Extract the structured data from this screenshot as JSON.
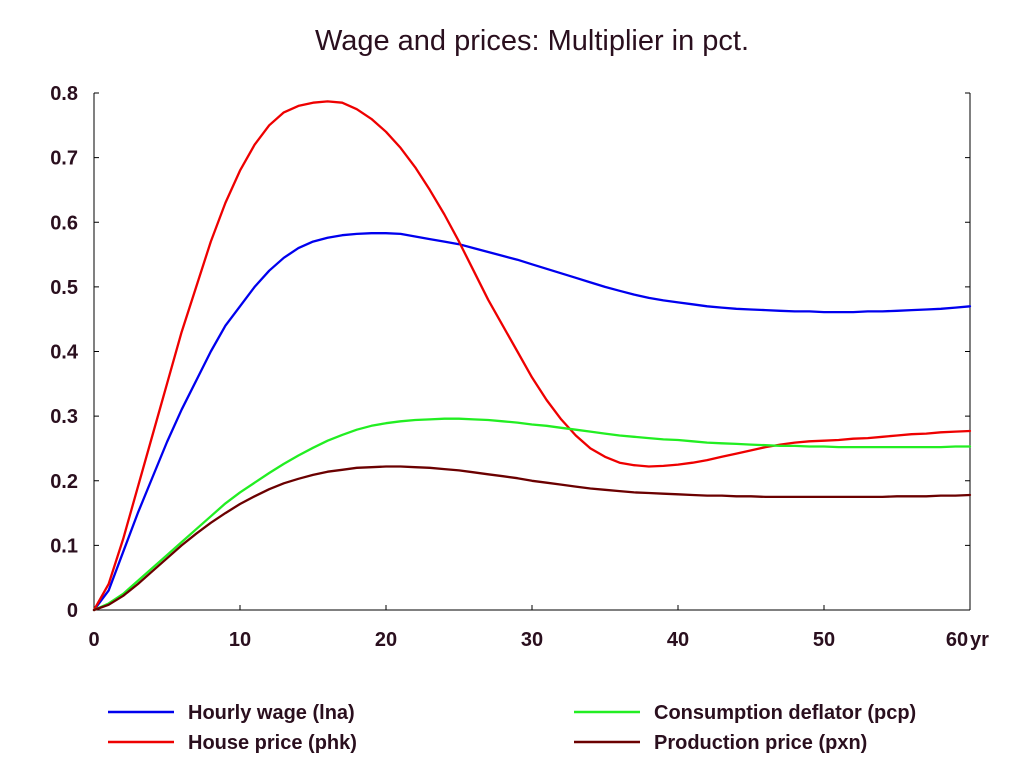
{
  "chart_data": {
    "type": "line",
    "title": "Wage and prices: Multiplier in pct.",
    "xlabel": "",
    "ylabel": "",
    "x_unit_label": "yr",
    "xlim": [
      0,
      60
    ],
    "ylim": [
      0,
      0.8
    ],
    "x_ticks": [
      0,
      10,
      20,
      30,
      40,
      50,
      60
    ],
    "x_tick_labels": [
      "0",
      "10",
      "20",
      "30",
      "40",
      "50",
      "60"
    ],
    "y_ticks": [
      0,
      0.1,
      0.2,
      0.3,
      0.4,
      0.5,
      0.6,
      0.7,
      0.8
    ],
    "y_tick_labels": [
      "0",
      "0.1",
      "0.2",
      "0.3",
      "0.4",
      "0.5",
      "0.6",
      "0.7",
      "0.8"
    ],
    "grid": false,
    "legend_position": "bottom",
    "x": [
      0,
      1,
      2,
      3,
      4,
      5,
      6,
      7,
      8,
      9,
      10,
      11,
      12,
      13,
      14,
      15,
      16,
      17,
      18,
      19,
      20,
      21,
      22,
      23,
      24,
      25,
      26,
      27,
      28,
      29,
      30,
      31,
      32,
      33,
      34,
      35,
      36,
      37,
      38,
      39,
      40,
      41,
      42,
      43,
      44,
      45,
      46,
      47,
      48,
      49,
      50,
      51,
      52,
      53,
      54,
      55,
      56,
      57,
      58,
      59,
      60
    ],
    "series": [
      {
        "name": "Hourly wage (lna)",
        "color": "#0000ee",
        "values": [
          0,
          0.03,
          0.09,
          0.15,
          0.205,
          0.26,
          0.31,
          0.355,
          0.4,
          0.44,
          0.47,
          0.5,
          0.525,
          0.545,
          0.56,
          0.57,
          0.576,
          0.58,
          0.582,
          0.583,
          0.583,
          0.582,
          0.578,
          0.574,
          0.57,
          0.566,
          0.56,
          0.554,
          0.548,
          0.542,
          0.535,
          0.528,
          0.521,
          0.514,
          0.507,
          0.5,
          0.494,
          0.488,
          0.483,
          0.479,
          0.476,
          0.473,
          0.47,
          0.468,
          0.466,
          0.465,
          0.464,
          0.463,
          0.462,
          0.462,
          0.461,
          0.461,
          0.461,
          0.462,
          0.462,
          0.463,
          0.464,
          0.465,
          0.466,
          0.468,
          0.47
        ]
      },
      {
        "name": "House price (phk)",
        "color": "#ee0000",
        "values": [
          0,
          0.04,
          0.11,
          0.19,
          0.27,
          0.35,
          0.43,
          0.5,
          0.57,
          0.63,
          0.68,
          0.72,
          0.75,
          0.77,
          0.78,
          0.785,
          0.787,
          0.785,
          0.775,
          0.76,
          0.74,
          0.715,
          0.685,
          0.65,
          0.612,
          0.57,
          0.525,
          0.48,
          0.44,
          0.4,
          0.36,
          0.325,
          0.295,
          0.27,
          0.25,
          0.237,
          0.228,
          0.224,
          0.222,
          0.223,
          0.225,
          0.228,
          0.232,
          0.237,
          0.242,
          0.247,
          0.252,
          0.256,
          0.259,
          0.261,
          0.262,
          0.263,
          0.265,
          0.266,
          0.268,
          0.27,
          0.272,
          0.273,
          0.275,
          0.276,
          0.277
        ]
      },
      {
        "name": "Consumption deflator (pcp)",
        "color": "#22ee22",
        "values": [
          0,
          0.01,
          0.025,
          0.045,
          0.065,
          0.085,
          0.105,
          0.125,
          0.145,
          0.165,
          0.182,
          0.197,
          0.212,
          0.226,
          0.239,
          0.251,
          0.262,
          0.271,
          0.279,
          0.285,
          0.289,
          0.292,
          0.294,
          0.295,
          0.296,
          0.296,
          0.295,
          0.294,
          0.292,
          0.29,
          0.287,
          0.285,
          0.282,
          0.279,
          0.276,
          0.273,
          0.27,
          0.268,
          0.266,
          0.264,
          0.263,
          0.261,
          0.259,
          0.258,
          0.257,
          0.256,
          0.255,
          0.254,
          0.254,
          0.253,
          0.253,
          0.252,
          0.252,
          0.252,
          0.252,
          0.252,
          0.252,
          0.252,
          0.252,
          0.253,
          0.253
        ]
      },
      {
        "name": "Production price (pxn)",
        "color": "#6b0000",
        "values": [
          0,
          0.008,
          0.022,
          0.04,
          0.06,
          0.08,
          0.1,
          0.118,
          0.135,
          0.15,
          0.164,
          0.176,
          0.187,
          0.196,
          0.203,
          0.209,
          0.214,
          0.217,
          0.22,
          0.221,
          0.222,
          0.222,
          0.221,
          0.22,
          0.218,
          0.216,
          0.213,
          0.21,
          0.207,
          0.204,
          0.2,
          0.197,
          0.194,
          0.191,
          0.188,
          0.186,
          0.184,
          0.182,
          0.181,
          0.18,
          0.179,
          0.178,
          0.177,
          0.177,
          0.176,
          0.176,
          0.175,
          0.175,
          0.175,
          0.175,
          0.175,
          0.175,
          0.175,
          0.175,
          0.175,
          0.176,
          0.176,
          0.176,
          0.177,
          0.177,
          0.178
        ]
      }
    ]
  },
  "legend": {
    "items": [
      {
        "label": "Hourly wage (lna)",
        "color": "#0000ee"
      },
      {
        "label": "House price (phk)",
        "color": "#ee0000"
      },
      {
        "label": "Consumption deflator (pcp)",
        "color": "#22ee22"
      },
      {
        "label": "Production price (pxn)",
        "color": "#6b0000"
      }
    ]
  }
}
